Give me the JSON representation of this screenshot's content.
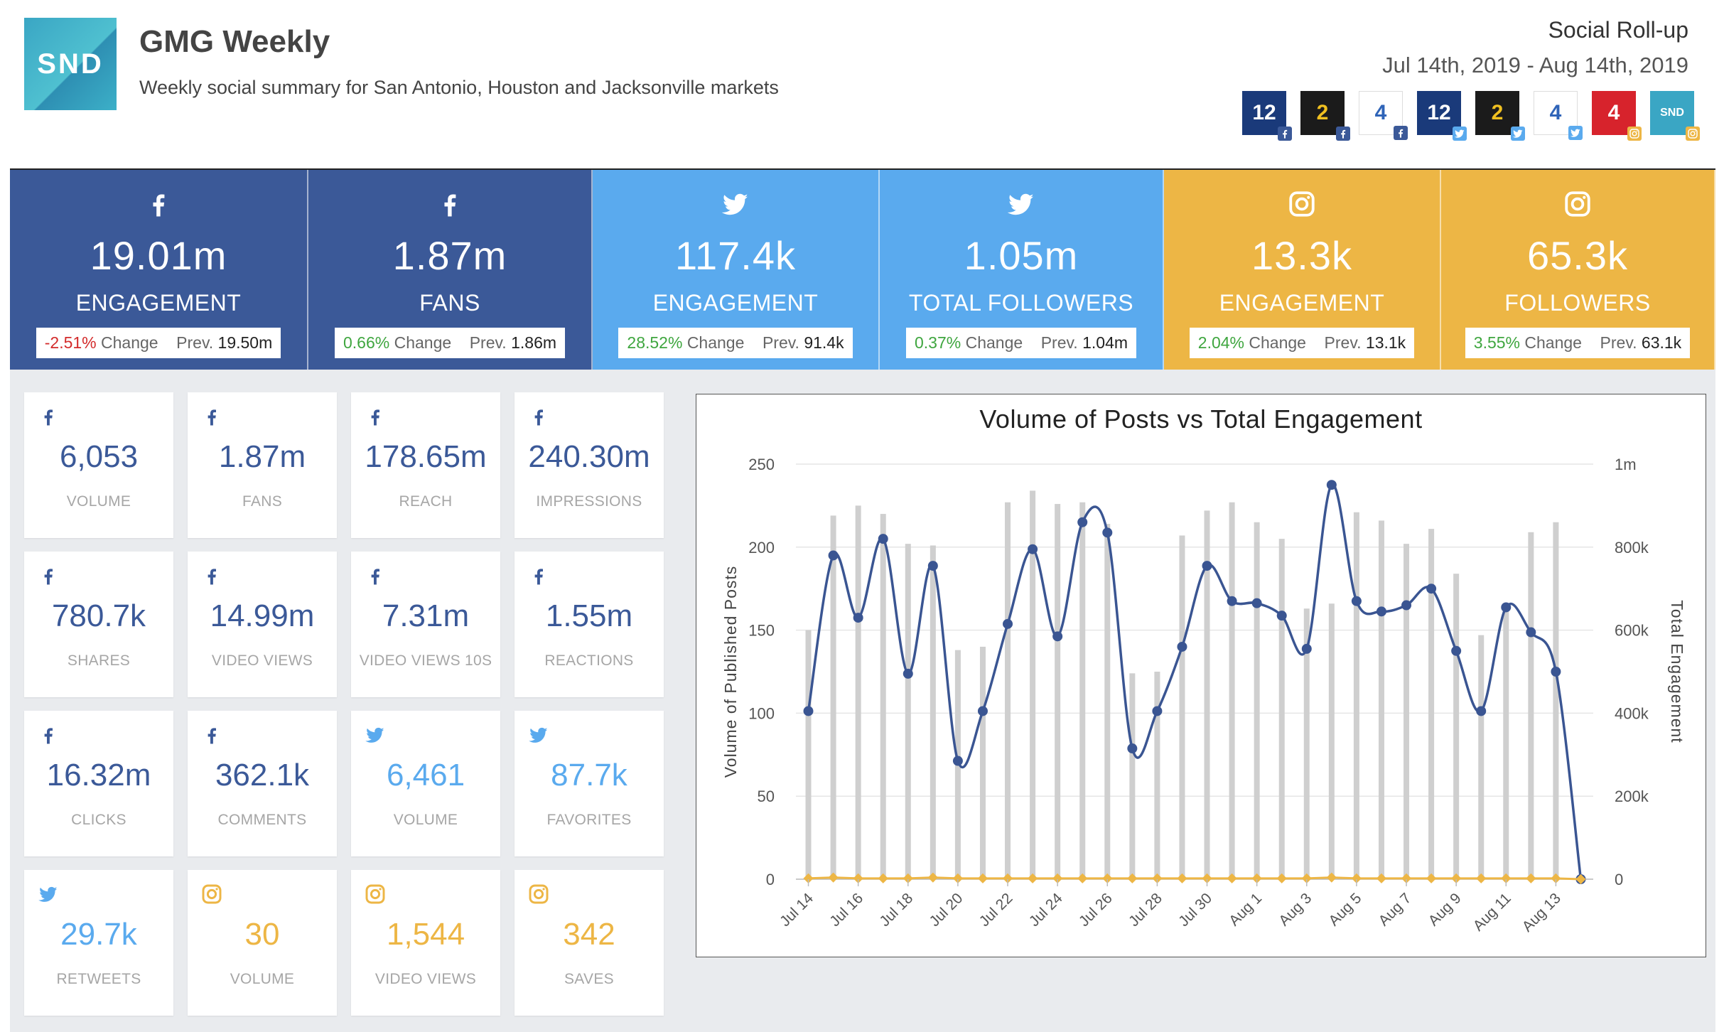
{
  "header": {
    "logo_text": "SND",
    "title": "GMG Weekly",
    "subtitle": "Weekly social summary for San Antonio, Houston and Jacksonville markets",
    "roll_up": "Social Roll-up",
    "date_range": "Jul 14th, 2019 - Aug 14th, 2019",
    "stations": [
      {
        "label": "12",
        "bg": "#1a3a7a",
        "platform": "facebook"
      },
      {
        "label": "2",
        "bg": "#1b1b1b",
        "platform": "facebook"
      },
      {
        "label": "4",
        "bg": "#ffffff",
        "platform": "facebook"
      },
      {
        "label": "12",
        "bg": "#1a3a7a",
        "platform": "twitter"
      },
      {
        "label": "2",
        "bg": "#1b1b1b",
        "platform": "twitter"
      },
      {
        "label": "4",
        "bg": "#ffffff",
        "platform": "twitter"
      },
      {
        "label": "4",
        "bg": "#d7232c",
        "platform": "instagram"
      },
      {
        "label": "SND",
        "bg": "#3aa6c4",
        "platform": "instagram"
      }
    ]
  },
  "kpis": [
    {
      "icon": "facebook-icon",
      "value": "19.01m",
      "caption": "ENGAGEMENT",
      "change": "-2.51%",
      "change_word": "Change",
      "prev_word": "Prev.",
      "prev": "19.50m",
      "trend": "neg",
      "bg": "#3b5998"
    },
    {
      "icon": "facebook-icon",
      "value": "1.87m",
      "caption": "FANS",
      "change": "0.66%",
      "change_word": "Change",
      "prev_word": "Prev.",
      "prev": "1.86m",
      "trend": "pos",
      "bg": "#3b5998"
    },
    {
      "icon": "twitter-icon",
      "value": "117.4k",
      "caption": "ENGAGEMENT",
      "change": "28.52%",
      "change_word": "Change",
      "prev_word": "Prev.",
      "prev": "91.4k",
      "trend": "pos",
      "bg": "#5aaaee"
    },
    {
      "icon": "twitter-icon",
      "value": "1.05m",
      "caption": "TOTAL FOLLOWERS",
      "change": "0.37%",
      "change_word": "Change",
      "prev_word": "Prev.",
      "prev": "1.04m",
      "trend": "pos",
      "bg": "#5aaaee"
    },
    {
      "icon": "instagram-icon",
      "value": "13.3k",
      "caption": "ENGAGEMENT",
      "change": "2.04%",
      "change_word": "Change",
      "prev_word": "Prev.",
      "prev": "13.1k",
      "trend": "pos",
      "bg": "#edb645"
    },
    {
      "icon": "instagram-icon",
      "value": "65.3k",
      "caption": "FOLLOWERS",
      "change": "3.55%",
      "change_word": "Change",
      "prev_word": "Prev.",
      "prev": "63.1k",
      "trend": "pos",
      "bg": "#edb645"
    }
  ],
  "colors": {
    "facebook": "#3b5998",
    "twitter": "#5aaaee",
    "instagram": "#edb645",
    "tile_fb_text": "#3b5998",
    "tile_tw_text": "#5aaaee",
    "tile_ig_text": "#edb645"
  },
  "tiles": [
    {
      "platform": "facebook",
      "value": "6,053",
      "label": "VOLUME"
    },
    {
      "platform": "facebook",
      "value": "1.87m",
      "label": "FANS"
    },
    {
      "platform": "facebook",
      "value": "178.65m",
      "label": "REACH"
    },
    {
      "platform": "facebook",
      "value": "240.30m",
      "label": "IMPRESSIONS"
    },
    {
      "platform": "facebook",
      "value": "780.7k",
      "label": "SHARES"
    },
    {
      "platform": "facebook",
      "value": "14.99m",
      "label": "VIDEO VIEWS"
    },
    {
      "platform": "facebook",
      "value": "7.31m",
      "label": "VIDEO VIEWS 10S"
    },
    {
      "platform": "facebook",
      "value": "1.55m",
      "label": "REACTIONS"
    },
    {
      "platform": "facebook",
      "value": "16.32m",
      "label": "CLICKS"
    },
    {
      "platform": "facebook",
      "value": "362.1k",
      "label": "COMMENTS"
    },
    {
      "platform": "twitter",
      "value": "6,461",
      "label": "VOLUME"
    },
    {
      "platform": "twitter",
      "value": "87.7k",
      "label": "FAVORITES"
    },
    {
      "platform": "twitter",
      "value": "29.7k",
      "label": "RETWEETS"
    },
    {
      "platform": "instagram",
      "value": "30",
      "label": "VOLUME"
    },
    {
      "platform": "instagram",
      "value": "1,544",
      "label": "VIDEO VIEWS"
    },
    {
      "platform": "instagram",
      "value": "342",
      "label": "SAVES"
    }
  ],
  "chart_data": {
    "type": "bar",
    "title": "Volume of Posts vs Total Engagement",
    "ylabel": "Volume of Published Posts",
    "y2label": "Total Engagement",
    "ylim": [
      0,
      250
    ],
    "y2lim": [
      0,
      1000000
    ],
    "yticks": [
      "0",
      "50",
      "100",
      "150",
      "200",
      "250"
    ],
    "y2ticks": [
      "0",
      "200k",
      "400k",
      "600k",
      "800k",
      "1m"
    ],
    "x": [
      "Jul 14",
      "Jul 15",
      "Jul 16",
      "Jul 17",
      "Jul 18",
      "Jul 19",
      "Jul 20",
      "Jul 21",
      "Jul 22",
      "Jul 23",
      "Jul 24",
      "Jul 25",
      "Jul 26",
      "Jul 27",
      "Jul 28",
      "Jul 29",
      "Jul 30",
      "Jul 31",
      "Aug 1",
      "Aug 2",
      "Aug 3",
      "Aug 4",
      "Aug 5",
      "Aug 6",
      "Aug 7",
      "Aug 8",
      "Aug 9",
      "Aug 10",
      "Aug 11",
      "Aug 12",
      "Aug 13",
      "Aug 14"
    ],
    "xtick_labels": [
      "Jul 14",
      "Jul 16",
      "Jul 18",
      "Jul 20",
      "Jul 22",
      "Jul 24",
      "Jul 26",
      "Jul 28",
      "Jul 30",
      "Aug 1",
      "Aug 3",
      "Aug 5",
      "Aug 7",
      "Aug 9",
      "Aug 11",
      "Aug 13"
    ],
    "grid": true,
    "series": [
      {
        "kind": "bar",
        "axis": "left",
        "color": "#cfcfcf",
        "values": [
          150,
          219,
          225,
          220,
          202,
          201,
          138,
          140,
          227,
          234,
          226,
          227,
          214,
          124,
          125,
          207,
          222,
          227,
          215,
          205,
          163,
          166,
          221,
          216,
          202,
          211,
          184,
          147,
          163,
          209,
          215,
          0
        ]
      },
      {
        "kind": "line",
        "axis": "right",
        "color": "#3a5592",
        "values": [
          405000,
          780000,
          630000,
          820000,
          495000,
          755000,
          285000,
          405000,
          615000,
          795000,
          585000,
          860000,
          835000,
          315000,
          405000,
          560000,
          755000,
          670000,
          665000,
          635000,
          555000,
          950000,
          670000,
          645000,
          660000,
          700000,
          550000,
          405000,
          655000,
          595000,
          500000,
          0
        ]
      },
      {
        "kind": "line",
        "axis": "left",
        "color": "#edb645",
        "values": [
          0.5,
          1,
          0.5,
          0.5,
          0.5,
          1,
          0.5,
          0.5,
          0.5,
          0.5,
          0.5,
          0.5,
          0.5,
          0.5,
          0.5,
          0.5,
          0.5,
          0.5,
          0.5,
          0.5,
          0.5,
          1,
          0.5,
          0.5,
          0.5,
          0.5,
          0.5,
          0.5,
          0.5,
          0.5,
          0.5,
          0
        ]
      }
    ]
  }
}
